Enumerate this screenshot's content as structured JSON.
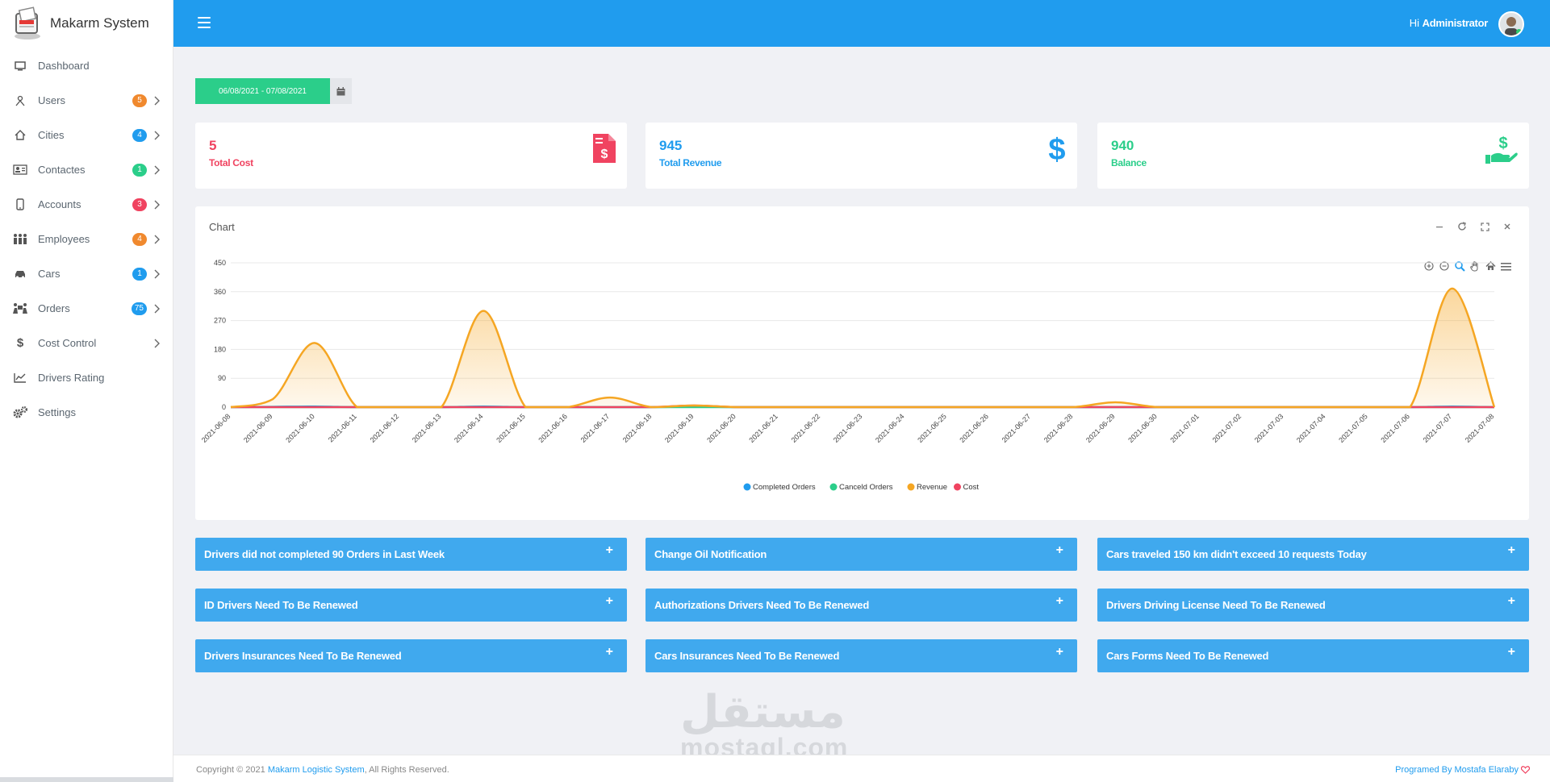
{
  "brand": {
    "name": "Makarm System"
  },
  "header": {
    "greeting": "Hi",
    "user": "Administrator"
  },
  "sidebar": {
    "items": [
      {
        "label": "Dashboard",
        "icon": "monitor-icon"
      },
      {
        "label": "Users",
        "icon": "users-icon",
        "badge": "5",
        "badge_color": "#f0892e"
      },
      {
        "label": "Cities",
        "icon": "home-icon",
        "badge": "4",
        "badge_color": "#209cee"
      },
      {
        "label": "Contactes",
        "icon": "contact-card-icon",
        "badge": "1",
        "badge_color": "#2bce8a"
      },
      {
        "label": "Accounts",
        "icon": "phone-icon",
        "badge": "3",
        "badge_color": "#f04360"
      },
      {
        "label": "Employees",
        "icon": "employees-icon",
        "badge": "4",
        "badge_color": "#f0892e"
      },
      {
        "label": "Cars",
        "icon": "car-icon",
        "badge": "1",
        "badge_color": "#209cee"
      },
      {
        "label": "Orders",
        "icon": "orders-icon",
        "badge": "75",
        "badge_color": "#209cee"
      },
      {
        "label": "Cost Control",
        "icon": "dollar-icon"
      },
      {
        "label": "Drivers Rating",
        "icon": "line-chart-icon"
      },
      {
        "label": "Settings",
        "icon": "gears-icon"
      }
    ]
  },
  "daterange": {
    "value": "06/08/2021 - 07/08/2021"
  },
  "stats": [
    {
      "value": "5",
      "label": "Total Cost",
      "color": "#f04360",
      "icon": "invoice-dollar-icon"
    },
    {
      "value": "945",
      "label": "Total Revenue",
      "color": "#209cee",
      "icon": "dollar-icon"
    },
    {
      "value": "940",
      "label": "Balance",
      "color": "#2bce8a",
      "icon": "hand-dollar-icon"
    }
  ],
  "panel": {
    "title": "Chart"
  },
  "chart_data": {
    "type": "area",
    "x": [
      "2021-06-08",
      "2021-06-09",
      "2021-06-10",
      "2021-06-11",
      "2021-06-12",
      "2021-06-13",
      "2021-06-14",
      "2021-06-15",
      "2021-06-16",
      "2021-06-17",
      "2021-06-18",
      "2021-06-19",
      "2021-06-20",
      "2021-06-21",
      "2021-06-22",
      "2021-06-23",
      "2021-06-24",
      "2021-06-25",
      "2021-06-26",
      "2021-06-27",
      "2021-06-28",
      "2021-06-29",
      "2021-06-30",
      "2021-07-01",
      "2021-07-02",
      "2021-07-03",
      "2021-07-04",
      "2021-07-05",
      "2021-07-06",
      "2021-07-07",
      "2021-07-08"
    ],
    "yticks": [
      0,
      90,
      180,
      270,
      360,
      450
    ],
    "ylim": [
      0,
      450
    ],
    "grid": true,
    "legend_position": "bottom-center",
    "series": [
      {
        "name": "Completed Orders",
        "color": "#209cee",
        "values": [
          0,
          1,
          2,
          0,
          0,
          0,
          2,
          0,
          0,
          0,
          0,
          1,
          0,
          0,
          0,
          0,
          0,
          0,
          0,
          0,
          0,
          0,
          0,
          0,
          0,
          0,
          0,
          0,
          0,
          2,
          0
        ]
      },
      {
        "name": "Canceld Orders",
        "color": "#2bce8a",
        "values": [
          0,
          0,
          0,
          0,
          0,
          0,
          0,
          0,
          0,
          0,
          0,
          0,
          0,
          0,
          0,
          0,
          0,
          0,
          0,
          0,
          0,
          0,
          0,
          0,
          0,
          0,
          0,
          0,
          0,
          0,
          0
        ]
      },
      {
        "name": "Revenue",
        "color": "#f5a623",
        "values": [
          0,
          25,
          200,
          0,
          0,
          0,
          300,
          0,
          0,
          30,
          0,
          5,
          0,
          0,
          0,
          0,
          0,
          0,
          0,
          0,
          0,
          15,
          0,
          0,
          0,
          0,
          0,
          0,
          0,
          370,
          0
        ]
      },
      {
        "name": "Cost",
        "color": "#f04360",
        "values": [
          0,
          0,
          0,
          0,
          0,
          0,
          0,
          0,
          0,
          0,
          0,
          5,
          0,
          0,
          0,
          0,
          0,
          0,
          0,
          0,
          0,
          0,
          0,
          0,
          0,
          0,
          0,
          0,
          0,
          0,
          0
        ]
      }
    ]
  },
  "accordions": [
    {
      "title": "Drivers did not completed 90 Orders in Last Week"
    },
    {
      "title": "Change Oil Notification"
    },
    {
      "title": "Cars traveled 150 km didn't exceed 10 requests Today"
    },
    {
      "title": "ID Drivers Need To Be Renewed"
    },
    {
      "title": "Authorizations Drivers Need To Be Renewed"
    },
    {
      "title": "Drivers Driving License Need To Be Renewed"
    },
    {
      "title": "Drivers Insurances Need To Be Renewed"
    },
    {
      "title": "Cars Insurances Need To Be Renewed"
    },
    {
      "title": "Cars Forms Need To Be Renewed"
    }
  ],
  "accordion_toggle": "+",
  "watermark": {
    "arabic": "مستقل",
    "latin": "mostaql.com"
  },
  "footer": {
    "copyright": "Copyright © 2021",
    "company": "Makarm Logistic System",
    "rights": ", All Rights Reserved.",
    "programmed": "Programed By Mostafa Elaraby"
  }
}
